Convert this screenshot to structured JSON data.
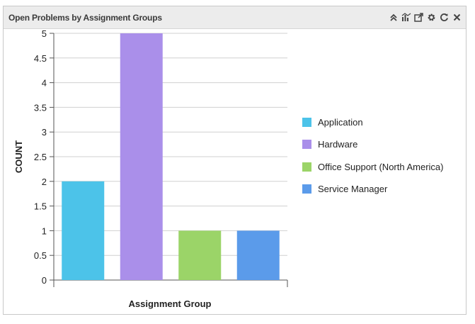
{
  "widget": {
    "title": "Open Problems by Assignment Groups",
    "toolbar": [
      "collapse-icon",
      "chart-type-icon",
      "popout-icon",
      "settings-icon",
      "refresh-icon",
      "close-icon"
    ]
  },
  "chart_data": {
    "type": "bar",
    "categories": [
      "Application",
      "Hardware",
      "Office Support (North America)",
      "Service Manager"
    ],
    "values": [
      2,
      5,
      1,
      1
    ],
    "colors": [
      "#4cc3e9",
      "#aa8fea",
      "#9bd468",
      "#5b9bea"
    ],
    "xlabel": "Assignment Group",
    "ylabel": "COUNT",
    "ylim": [
      0,
      5
    ],
    "yticks": [
      "0",
      "0.5",
      "1",
      "1.5",
      "2",
      "2.5",
      "3",
      "3.5",
      "4",
      "4.5",
      "5"
    ],
    "grid": true,
    "legend": "right"
  }
}
